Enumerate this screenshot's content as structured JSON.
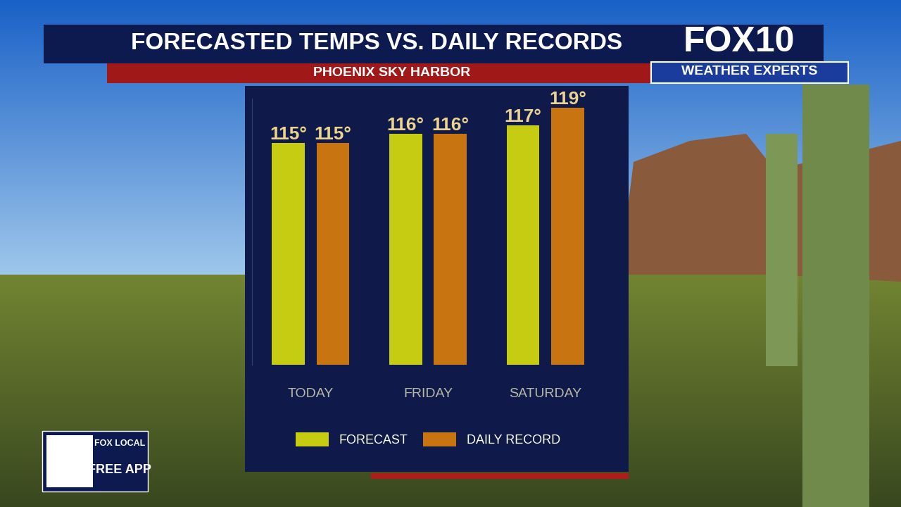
{
  "chart_data": {
    "type": "bar",
    "title": "FORECASTED TEMPS VS. DAILY RECORDS",
    "subtitle": "PHOENIX SKY HARBOR",
    "categories": [
      "TODAY",
      "FRIDAY",
      "SATURDAY"
    ],
    "series": [
      {
        "name": "FORECAST",
        "color": "#c5cc12",
        "values": [
          115,
          116,
          117
        ],
        "value_labels": [
          "115°",
          "116°",
          "117°"
        ]
      },
      {
        "name": "DAILY RECORD",
        "color": "#c87410",
        "values": [
          115,
          116,
          119
        ],
        "value_labels": [
          "115°",
          "116°",
          "119°"
        ]
      }
    ],
    "ylim": [
      90,
      120
    ],
    "yticks": [],
    "tick_labels": "x",
    "data_labels": true,
    "legend": "lower center",
    "grid": false
  },
  "branding": {
    "logo": "FOX10",
    "tagline": "WEATHER EXPERTS",
    "app_brand": "FOX LOCAL",
    "app_text": "FREE APP"
  }
}
